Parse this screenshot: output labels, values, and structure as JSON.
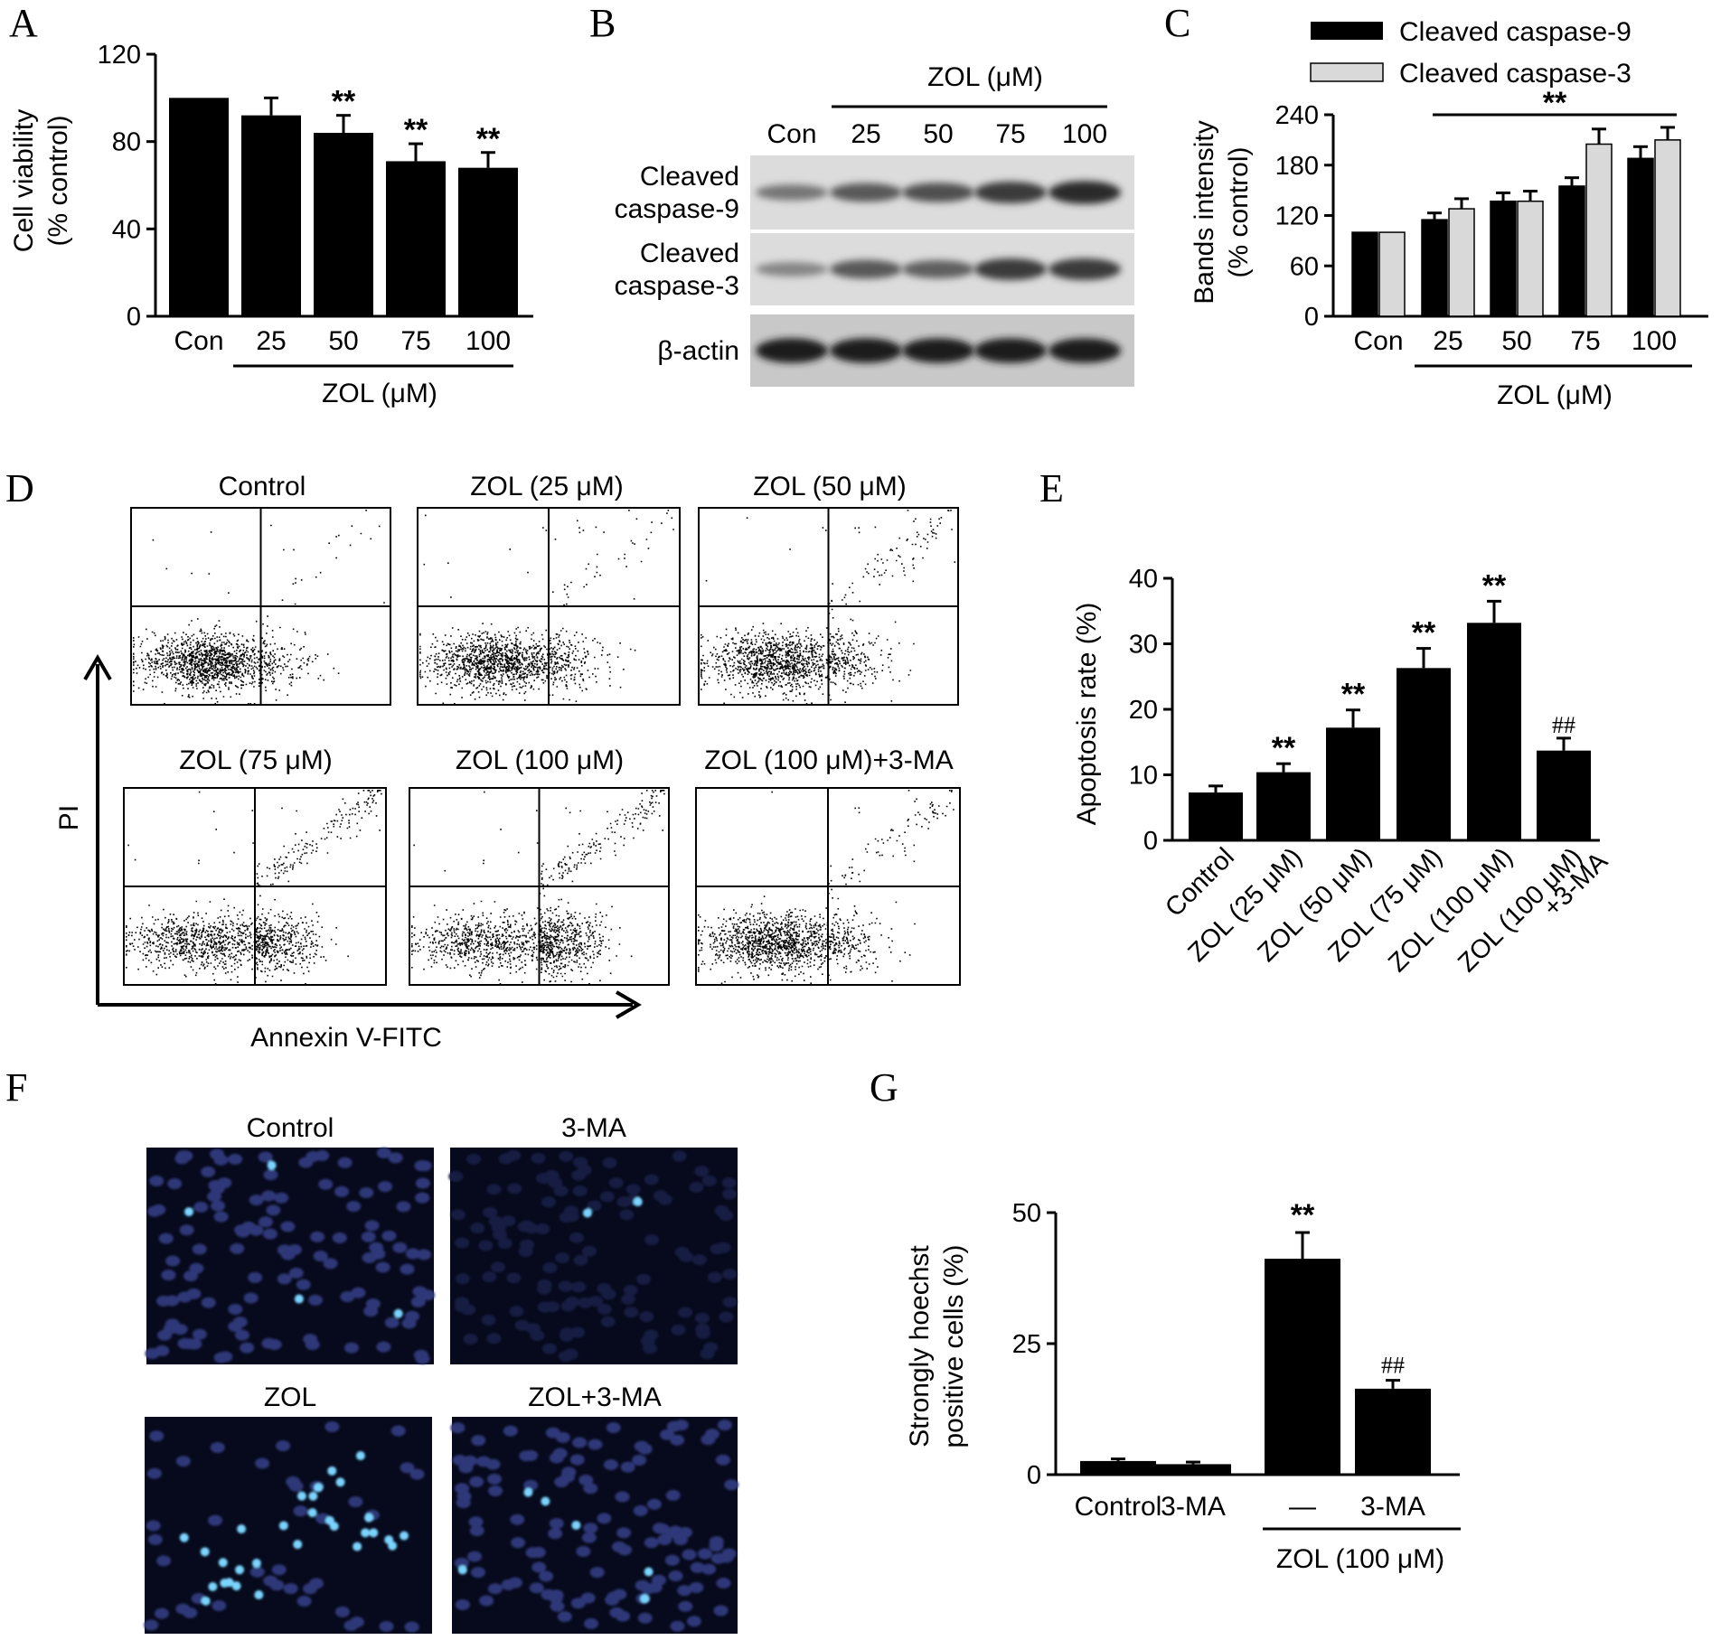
{
  "panels": {
    "A": {
      "label": "A",
      "chart_data": {
        "type": "bar",
        "categories": [
          "Con",
          "25",
          "50",
          "75",
          "100"
        ],
        "values": [
          100,
          92,
          84,
          71,
          68
        ],
        "errors": [
          0,
          8,
          8,
          8,
          7
        ],
        "significance": [
          "",
          "",
          "**",
          "**",
          "**"
        ],
        "ylabel_lines": [
          "Cell viability",
          "(% control)"
        ],
        "group_label": "ZOL (μM)",
        "ylim": [
          0,
          120
        ],
        "yticks": [
          0,
          40,
          80,
          120
        ],
        "bar_color": "#000000"
      }
    },
    "B": {
      "label": "B",
      "group_label": "ZOL (μM)",
      "lanes": [
        "Con",
        "25",
        "50",
        "75",
        "100"
      ],
      "rows": [
        {
          "label_lines": [
            "Cleaved",
            "caspase-9"
          ],
          "intensity": [
            0.35,
            0.55,
            0.6,
            0.75,
            0.85
          ]
        },
        {
          "label_lines": [
            "Cleaved",
            "caspase-3"
          ],
          "intensity": [
            0.25,
            0.55,
            0.5,
            0.75,
            0.75
          ]
        },
        {
          "label_lines": [
            "β-actin"
          ],
          "intensity": [
            0.95,
            0.95,
            0.95,
            0.95,
            0.95
          ]
        }
      ]
    },
    "C": {
      "label": "C",
      "chart_data": {
        "type": "bar",
        "categories": [
          "Con",
          "25",
          "50",
          "75",
          "100"
        ],
        "series": [
          {
            "name": "Cleaved caspase-9",
            "values": [
              100,
              115,
              137,
              155,
              188
            ],
            "errors": [
              0,
              8,
              10,
              10,
              14
            ],
            "color": "#000000"
          },
          {
            "name": "Cleaved caspase-3",
            "values": [
              100,
              128,
              137,
              205,
              210
            ],
            "errors": [
              0,
              12,
              12,
              18,
              15
            ],
            "color": "#d9d9d9"
          }
        ],
        "ylabel_lines": [
          "Bands intensity",
          "(% control)"
        ],
        "group_label": "ZOL (μM)",
        "significance": "**",
        "ylim": [
          0,
          240
        ],
        "yticks": [
          0,
          60,
          120,
          180,
          240
        ],
        "legend_position": "top"
      }
    },
    "D": {
      "label": "D",
      "plots": [
        "Control",
        "ZOL (25 μM)",
        "ZOL (50 μM)",
        "ZOL (75 μM)",
        "ZOL (100 μM)",
        "ZOL (100 μM)+3-MA"
      ],
      "y_axis_label": "PI",
      "x_axis_label": "Annexin V-FITC"
    },
    "E": {
      "label": "E",
      "chart_data": {
        "type": "bar",
        "categories": [
          "Control",
          "ZOL (25 μM)",
          "ZOL (50 μM)",
          "ZOL (75 μM)",
          "ZOL (100 μM)",
          "ZOL (100 μM)|+3-MA"
        ],
        "values": [
          7.3,
          10.4,
          17.2,
          26.3,
          33.2,
          13.7
        ],
        "errors": [
          1.0,
          1.3,
          2.7,
          3.0,
          3.3,
          1.9
        ],
        "significance": [
          "",
          "**",
          "**",
          "**",
          "**",
          "##"
        ],
        "ylabel": "Apoptosis rate (%)",
        "ylim": [
          0,
          40
        ],
        "yticks": [
          0,
          10,
          20,
          30,
          40
        ],
        "bar_color": "#000000"
      }
    },
    "F": {
      "label": "F",
      "images": [
        "Control",
        "3-MA",
        "ZOL",
        "ZOL+3-MA"
      ]
    },
    "G": {
      "label": "G",
      "chart_data": {
        "type": "bar",
        "categories": [
          "Control",
          "3-MA",
          "—",
          "3-MA"
        ],
        "values": [
          2.6,
          2.0,
          41.2,
          16.4
        ],
        "errors": [
          0.4,
          0.4,
          5.0,
          1.6
        ],
        "significance": [
          "",
          "",
          "**",
          "##"
        ],
        "ylabel_lines": [
          "Strongly hoechst",
          "positive cells (%)"
        ],
        "group_label": "ZOL (100 μM)",
        "ylim": [
          0,
          50
        ],
        "yticks": [
          0,
          25,
          50
        ],
        "bar_color": "#000000"
      }
    }
  }
}
